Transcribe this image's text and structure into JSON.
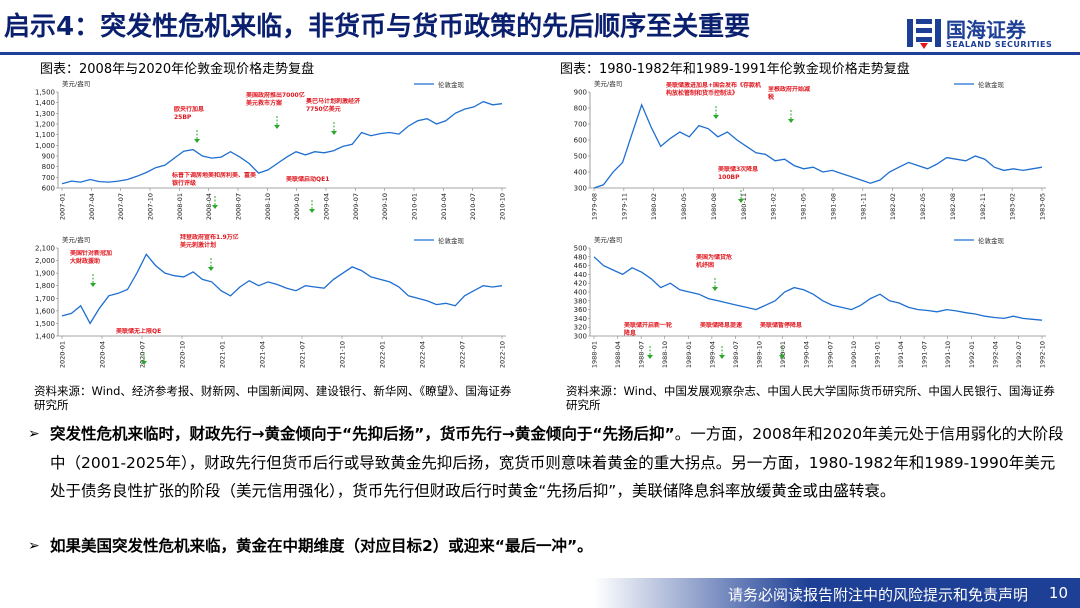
{
  "header": {
    "title": "启示4：突发性危机来临，非货币与货币政策的先后顺序至关重要",
    "logo_cn": "国海证券",
    "logo_en": "SEALAND SECURITIES",
    "brand_color": "#1d3f95"
  },
  "captions": {
    "left": "图表：2008年与2020年伦敦金现价格走势复盘",
    "right": "图表：1980-1982年和1989-1991年伦敦金现价格走势复盘"
  },
  "sources": {
    "left": "资料来源：Wind、经济参考报、财新网、中国新闻网、建设银行、新华网、《瞭望》、国海证券研究所",
    "right": "资料来源：Wind、中国发展观察杂志、中国人民大学国际货币研究所、中国人民银行、国海证券研究所"
  },
  "chart_data": [
    {
      "type": "line",
      "ylabel": "美元/盎司",
      "series_name": "伦敦金现",
      "ylim": [
        600,
        1500
      ],
      "yticks": [
        "1,500",
        "1,400",
        "1,300",
        "1,200",
        "1,100",
        "1,000",
        "900",
        "800",
        "700",
        "600"
      ],
      "xticks": [
        "2007-01",
        "2007-04",
        "2007-07",
        "2007-10",
        "2008-01",
        "2008-04",
        "2008-07",
        "2008-10",
        "2009-01",
        "2009-04",
        "2009-07",
        "2009-10",
        "2010-01",
        "2010-04",
        "2010-07",
        "2010-10"
      ],
      "x": [
        0,
        1,
        2,
        3,
        4,
        5,
        6,
        7,
        8,
        9,
        10,
        11,
        12,
        13,
        14,
        15,
        16,
        17,
        18,
        19,
        20,
        21,
        22,
        23,
        24,
        25,
        26,
        27,
        28,
        29,
        30,
        31,
        32,
        33,
        34,
        35,
        36,
        37,
        38,
        39,
        40,
        41,
        42,
        43,
        44,
        45,
        46,
        47
      ],
      "values": [
        640,
        665,
        655,
        680,
        660,
        655,
        665,
        680,
        710,
        745,
        790,
        815,
        880,
        945,
        960,
        900,
        880,
        890,
        940,
        890,
        830,
        740,
        770,
        830,
        890,
        940,
        910,
        940,
        930,
        950,
        990,
        1010,
        1120,
        1090,
        1110,
        1120,
        1105,
        1180,
        1230,
        1250,
        1200,
        1230,
        1300,
        1340,
        1360,
        1410,
        1380,
        1390
      ],
      "annotations": [
        "欧央行加息25BP",
        "美国政府推出7000亿美元救市方案",
        "奥巴马计划刺激经济7750亿美元",
        "标普下调房地美和房利美、富美银行评级",
        "美联储启动QE1"
      ]
    },
    {
      "type": "line",
      "ylabel": "美元/盎司",
      "series_name": "伦敦金现",
      "ylim": [
        300,
        900
      ],
      "yticks": [
        "900",
        "800",
        "700",
        "600",
        "500",
        "400",
        "300"
      ],
      "xticks": [
        "1979-08",
        "1979-11",
        "1980-02",
        "1980-05",
        "1980-08",
        "1980-11",
        "1981-02",
        "1981-05",
        "1981-08",
        "1981-11",
        "1982-02",
        "1982-05",
        "1982-08",
        "1982-11",
        "1983-02",
        "1983-05"
      ],
      "x": [
        0,
        1,
        2,
        3,
        4,
        5,
        6,
        7,
        8,
        9,
        10,
        11,
        12,
        13,
        14,
        15,
        16,
        17,
        18,
        19,
        20,
        21,
        22,
        23,
        24,
        25,
        26,
        27,
        28,
        29,
        30,
        31,
        32,
        33,
        34,
        35,
        36,
        37,
        38,
        39,
        40,
        41,
        42,
        43,
        44,
        45,
        46,
        47
      ],
      "values": [
        300,
        320,
        400,
        460,
        640,
        820,
        680,
        560,
        610,
        650,
        620,
        690,
        670,
        620,
        650,
        600,
        560,
        520,
        510,
        470,
        480,
        440,
        420,
        430,
        400,
        410,
        390,
        370,
        350,
        330,
        350,
        400,
        430,
        460,
        440,
        420,
        450,
        490,
        480,
        470,
        500,
        480,
        430,
        410,
        420,
        410,
        420,
        430
      ],
      "annotations": [
        "美联储激进加息+国会发布《存款机构放松管制和货币控制法》",
        "里根政府开始减税",
        "美联储3次降息100BP"
      ]
    },
    {
      "type": "line",
      "ylabel": "美元/盎司",
      "series_name": "伦敦金现",
      "ylim": [
        1400,
        2100
      ],
      "yticks": [
        "2,100",
        "2,000",
        "1,900",
        "1,800",
        "1,700",
        "1,600",
        "1,500",
        "1,400"
      ],
      "xticks": [
        "2020-01",
        "2020-04",
        "2020-07",
        "2020-10",
        "2021-01",
        "2021-04",
        "2021-07",
        "2021-10",
        "2022-01",
        "2022-04",
        "2022-07",
        "2022-10"
      ],
      "x": [
        0,
        1,
        2,
        3,
        4,
        5,
        6,
        7,
        8,
        9,
        10,
        11,
        12,
        13,
        14,
        15,
        16,
        17,
        18,
        19,
        20,
        21,
        22,
        23,
        24,
        25,
        26,
        27,
        28,
        29,
        30,
        31,
        32,
        33,
        34,
        35,
        36,
        37,
        38,
        39,
        40,
        41,
        42,
        43,
        44,
        45,
        46,
        47
      ],
      "values": [
        1560,
        1580,
        1640,
        1500,
        1620,
        1720,
        1740,
        1770,
        1900,
        2050,
        1960,
        1900,
        1880,
        1870,
        1910,
        1850,
        1830,
        1760,
        1720,
        1790,
        1840,
        1800,
        1830,
        1810,
        1780,
        1760,
        1800,
        1790,
        1780,
        1850,
        1900,
        1950,
        1920,
        1870,
        1850,
        1830,
        1790,
        1720,
        1700,
        1680,
        1650,
        1660,
        1640,
        1720,
        1760,
        1800,
        1790,
        1800
      ],
      "annotations": [
        "美国针对新冠加大财政援助",
        "拜登政府宣布1.9万亿美元刺激计划",
        "美联储无上限QE"
      ]
    },
    {
      "type": "line",
      "ylabel": "美元/盎司",
      "series_name": "伦敦金现",
      "ylim": [
        300,
        500
      ],
      "yticks": [
        "500",
        "480",
        "460",
        "440",
        "420",
        "400",
        "380",
        "360",
        "340",
        "320",
        "300"
      ],
      "xticks": [
        "1988-01",
        "1988-04",
        "1988-07",
        "1988-10",
        "1989-01",
        "1989-04",
        "1989-07",
        "1989-10",
        "1990-01",
        "1990-04",
        "1990-07",
        "1990-10",
        "1991-01",
        "1991-04",
        "1991-07",
        "1991-10",
        "1992-01",
        "1992-04",
        "1992-07",
        "1992-10"
      ],
      "x": [
        0,
        1,
        2,
        3,
        4,
        5,
        6,
        7,
        8,
        9,
        10,
        11,
        12,
        13,
        14,
        15,
        16,
        17,
        18,
        19,
        20,
        21,
        22,
        23,
        24,
        25,
        26,
        27,
        28,
        29,
        30,
        31,
        32,
        33,
        34,
        35,
        36,
        37,
        38,
        39,
        40,
        41,
        42,
        43,
        44,
        45,
        46,
        47
      ],
      "values": [
        480,
        460,
        450,
        440,
        455,
        445,
        430,
        410,
        420,
        405,
        400,
        395,
        385,
        380,
        375,
        370,
        365,
        360,
        370,
        380,
        400,
        410,
        405,
        395,
        380,
        370,
        365,
        360,
        370,
        385,
        395,
        380,
        375,
        365,
        360,
        358,
        355,
        360,
        357,
        353,
        350,
        345,
        342,
        340,
        345,
        340,
        338,
        336
      ],
      "annotations": [
        "美国为储贷危机纾困",
        "美联储开启新一轮降息",
        "美联储降息提速",
        "美联储暂停降息"
      ]
    }
  ],
  "bullets": [
    {
      "bold": "突发性危机来临时，财政先行→黄金倾向于“先抑后扬”，货币先行→黄金倾向于“先扬后抑”",
      "rest": "。一方面，2008年和2020年美元处于信用弱化的大阶段中（2001-2025年），财政先行但货币后行或导致黄金先抑后扬，宽货币则意味着黄金的重大拐点。另一方面，1980-1982年和1989-1990年美元处于债务良性扩张的阶段（美元信用强化），货币先行但财政后行时黄金“先扬后抑”，美联储降息斜率放缓黄金或由盛转衰。"
    },
    {
      "bold": "如果美国突发性危机来临，黄金在中期维度（对应目标2）或迎来“最后一冲”。",
      "rest": ""
    }
  ],
  "footer": {
    "disclaimer": "请务必阅读报告附注中的风险提示和免责声明",
    "page": "10"
  },
  "colors": {
    "line": "#1f6fd1",
    "annotation": "#e0161e",
    "arrow": "#2aa82a"
  }
}
